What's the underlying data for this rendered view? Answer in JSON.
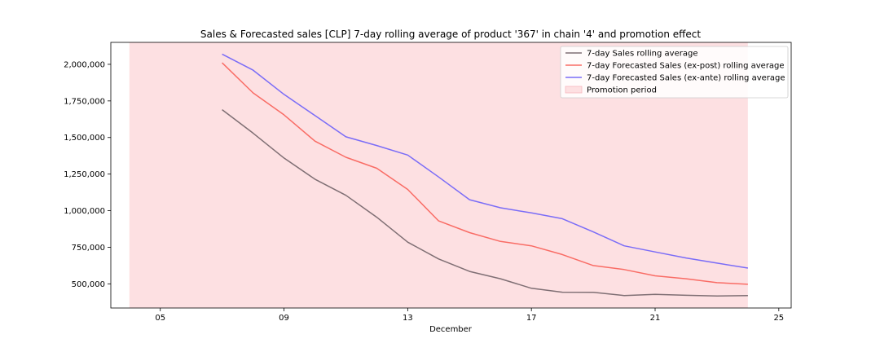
{
  "chart_data": {
    "type": "line",
    "title": "Sales & Forecasted sales [CLP] 7-day rolling average of product '367' in chain '4' and promotion effect",
    "xlabel": "December",
    "ylabel": "",
    "x_ticks": [
      "05",
      "09",
      "13",
      "17",
      "21",
      "25"
    ],
    "x_tick_days": [
      5,
      9,
      13,
      17,
      21,
      25
    ],
    "xlim": [
      3.4,
      25.4
    ],
    "y_ticks": [
      "500,000",
      "750,000",
      "1,000,000",
      "1,250,000",
      "1,500,000",
      "1,750,000",
      "2,000,000"
    ],
    "y_tick_values": [
      500000,
      750000,
      1000000,
      1250000,
      1500000,
      1750000,
      2000000
    ],
    "ylim": [
      335000,
      2150000
    ],
    "grid": false,
    "legend_position": "top-right",
    "x": [
      7,
      8,
      9,
      10,
      11,
      12,
      13,
      14,
      15,
      16,
      17,
      18,
      19,
      20,
      21,
      22,
      23,
      24
    ],
    "series": [
      {
        "name": "7-day Sales rolling average",
        "color": "#7f6f74",
        "values": [
          1690000,
          1530000,
          1360000,
          1215000,
          1105000,
          955000,
          785000,
          670000,
          585000,
          535000,
          470000,
          443000,
          442000,
          420000,
          428000,
          422000,
          417000,
          420000
        ]
      },
      {
        "name": "7-day Forecasted Sales (ex-post) rolling average",
        "color": "#f96c65",
        "values": [
          2010000,
          1805000,
          1655000,
          1475000,
          1365000,
          1290000,
          1145000,
          930000,
          850000,
          790000,
          760000,
          700000,
          625000,
          598000,
          555000,
          535000,
          508000,
          497000
        ]
      },
      {
        "name": "7-day Forecasted Sales (ex-ante) rolling average",
        "color": "#7a6cf7",
        "values": [
          2070000,
          1960000,
          1795000,
          1650000,
          1505000,
          1445000,
          1380000,
          1230000,
          1075000,
          1020000,
          985000,
          945000,
          855000,
          760000,
          718000,
          677000,
          642000,
          608000
        ]
      }
    ],
    "promotion": {
      "name": "Promotion period",
      "start": 4,
      "end": 24,
      "color": "#fde0e2",
      "edge_color": "#f7b8bf"
    }
  }
}
